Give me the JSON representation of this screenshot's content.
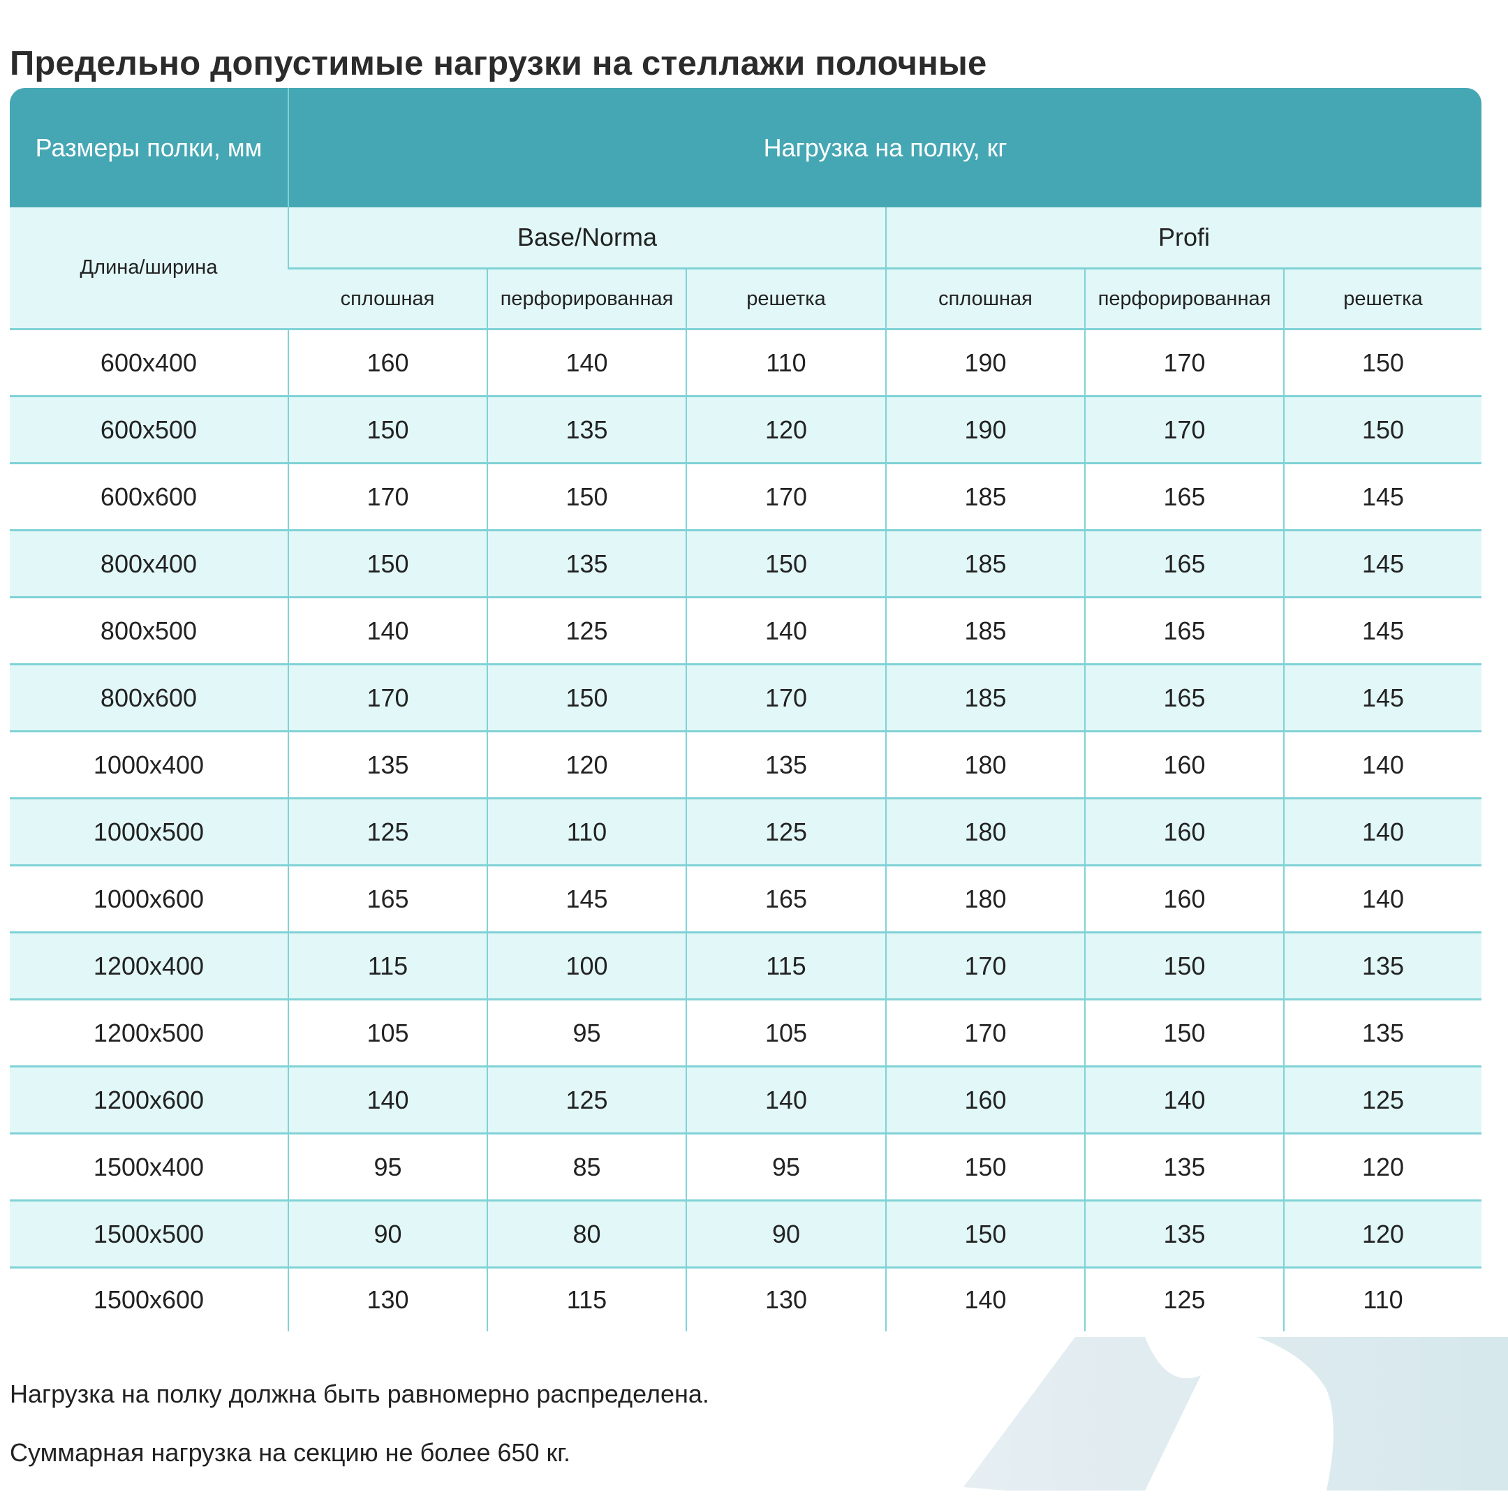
{
  "page": {
    "title": "Предельно допустимые нагрузки на стеллажи полочные"
  },
  "table": {
    "header": {
      "sizes_label": "Размеры полки, мм",
      "load_label": "Нагрузка на полку, кг"
    },
    "dim_label": "Длина/ширина",
    "groups": [
      {
        "name": "Base/Norma"
      },
      {
        "name": "Profi"
      }
    ],
    "subcolumns": [
      "сплошная",
      "перфорированная",
      "решетка",
      "сплошная",
      "перфорированная",
      "решетка"
    ],
    "rows": [
      {
        "size": "600x400",
        "values": [
          "160",
          "140",
          "110",
          "190",
          "170",
          "150"
        ]
      },
      {
        "size": "600x500",
        "values": [
          "150",
          "135",
          "120",
          "190",
          "170",
          "150"
        ]
      },
      {
        "size": "600x600",
        "values": [
          "170",
          "150",
          "170",
          "185",
          "165",
          "145"
        ]
      },
      {
        "size": "800x400",
        "values": [
          "150",
          "135",
          "150",
          "185",
          "165",
          "145"
        ]
      },
      {
        "size": "800x500",
        "values": [
          "140",
          "125",
          "140",
          "185",
          "165",
          "145"
        ]
      },
      {
        "size": "800x600",
        "values": [
          "170",
          "150",
          "170",
          "185",
          "165",
          "145"
        ]
      },
      {
        "size": "1000x400",
        "values": [
          "135",
          "120",
          "135",
          "180",
          "160",
          "140"
        ]
      },
      {
        "size": "1000x500",
        "values": [
          "125",
          "110",
          "125",
          "180",
          "160",
          "140"
        ]
      },
      {
        "size": "1000x600",
        "values": [
          "165",
          "145",
          "165",
          "180",
          "160",
          "140"
        ]
      },
      {
        "size": "1200x400",
        "values": [
          "115",
          "100",
          "115",
          "170",
          "150",
          "135"
        ]
      },
      {
        "size": "1200x500",
        "values": [
          "105",
          "95",
          "105",
          "170",
          "150",
          "135"
        ]
      },
      {
        "size": "1200x600",
        "values": [
          "140",
          "125",
          "140",
          "160",
          "140",
          "125"
        ]
      },
      {
        "size": "1500x400",
        "values": [
          "95",
          "85",
          "95",
          "150",
          "135",
          "120"
        ]
      },
      {
        "size": "1500x500",
        "values": [
          "90",
          "80",
          "90",
          "150",
          "135",
          "120"
        ]
      },
      {
        "size": "1500x600",
        "values": [
          "130",
          "115",
          "130",
          "140",
          "125",
          "110"
        ]
      }
    ]
  },
  "notes": [
    "Нагрузка на полку должна быть равномерно распределена.",
    "Суммарная нагрузка на секцию не более 650 кг."
  ],
  "colors": {
    "header_bg": "#46a7b4",
    "light_row_bg": "#e2f7f7",
    "grid_line": "#7fd2d6",
    "text": "#222222"
  }
}
